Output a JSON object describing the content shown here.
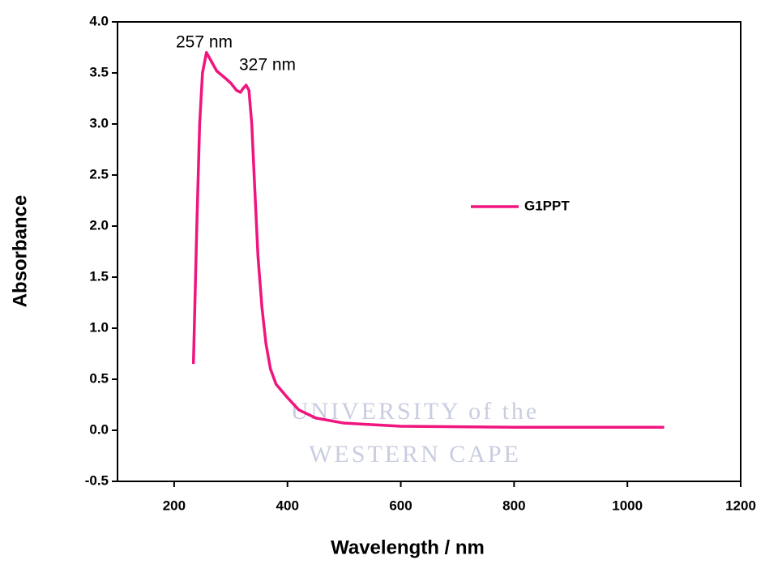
{
  "chart_data": {
    "type": "line",
    "x_label": "Wavelength / nm",
    "y_label": "Absorbance",
    "annotations": [
      "257 nm",
      "327 nm"
    ],
    "watermark": [
      "UNIVERSITY of the",
      "WESTERN CAPE"
    ],
    "legend": "center-right",
    "xlim": [
      100,
      1200
    ],
    "xticks": [
      200,
      400,
      600,
      800,
      1000,
      1200
    ],
    "ylim": [
      -0.5,
      4.0
    ],
    "yticks": [
      {
        "value": -0.5,
        "label": "-0.5"
      },
      {
        "value": 0,
        "label": "0.0"
      },
      0.5,
      {
        "value": 1,
        "label": "1.0"
      },
      1.5,
      {
        "value": 2,
        "label": "2.0"
      },
      2.5,
      {
        "value": 3,
        "label": "3.0"
      },
      3.5,
      {
        "value": 4,
        "label": "4.0"
      }
    ],
    "x": [
      234,
      240,
      245,
      250,
      257,
      265,
      275,
      290,
      300,
      310,
      317,
      322,
      327,
      332,
      337,
      342,
      348,
      355,
      362,
      370,
      380,
      400,
      420,
      450,
      500,
      600,
      700,
      800,
      900,
      1000,
      1065
    ],
    "series": [
      {
        "name": "G1PPT",
        "color": "#f0147e",
        "values": [
          0.65,
          2.0,
          3.0,
          3.5,
          3.7,
          3.62,
          3.52,
          3.45,
          3.4,
          3.33,
          3.31,
          3.35,
          3.38,
          3.33,
          3.0,
          2.4,
          1.7,
          1.2,
          0.85,
          0.6,
          0.45,
          0.32,
          0.2,
          0.12,
          0.07,
          0.04,
          0.035,
          0.03,
          0.03,
          0.03,
          0.03
        ]
      }
    ]
  }
}
